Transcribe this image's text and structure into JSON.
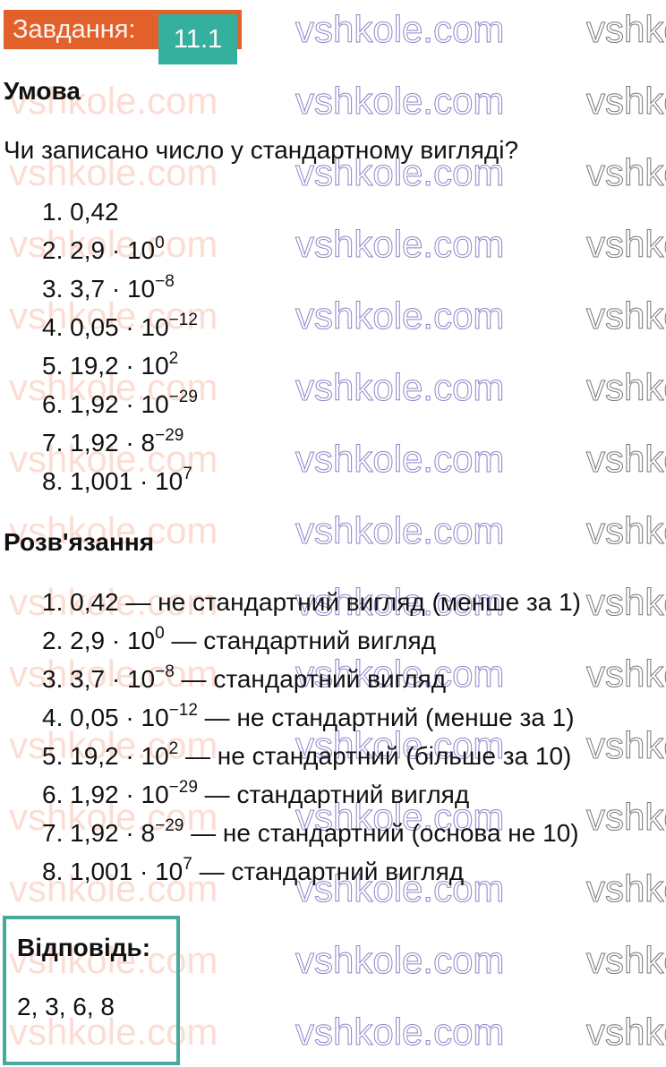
{
  "watermark": "vshkole.com",
  "badge": {
    "label": "Завдання:",
    "number": "11.1"
  },
  "condition": {
    "heading": "Умова",
    "question": "Чи записано число у стандартному вигляді?",
    "items": [
      {
        "base": "1. 0,42",
        "exp": "",
        "rest": ""
      },
      {
        "base": "2. 2,9 · 10",
        "exp": "0",
        "rest": ""
      },
      {
        "base": "3. 3,7 · 10",
        "exp": "−8",
        "rest": ""
      },
      {
        "base": "4. 0,05 · 10",
        "exp": "−12",
        "rest": ""
      },
      {
        "base": "5. 19,2 · 10",
        "exp": "2",
        "rest": ""
      },
      {
        "base": "6. 1,92 · 10",
        "exp": "−29",
        "rest": ""
      },
      {
        "base": "7. 1,92 · 8",
        "exp": "−29",
        "rest": ""
      },
      {
        "base": "8. 1,001 · 10",
        "exp": "7",
        "rest": ""
      }
    ]
  },
  "solution": {
    "heading": "Розв'язання",
    "items": [
      {
        "base": "1. 0,42 — не стандартний вигляд (менше за 1)",
        "exp": "",
        "rest": ""
      },
      {
        "base": "2. 2,9 · 10",
        "exp": "0",
        "rest": " — стандартний вигляд"
      },
      {
        "base": "3. 3,7 · 10",
        "exp": "−8",
        "rest": " — стандартний вигляд"
      },
      {
        "base": "4. 0,05 · 10",
        "exp": "−12",
        "rest": " — не стандартний (менше за 1)"
      },
      {
        "base": "5. 19,2 · 10",
        "exp": "2",
        "rest": " — не стандартний (більше за 10)"
      },
      {
        "base": "6. 1,92 · 10",
        "exp": "−29",
        "rest": " — стандартний вигляд"
      },
      {
        "base": "7. 1,92 · 8",
        "exp": "−29",
        "rest": " — не стандартний (основа не 10)"
      },
      {
        "base": "8. 1,001 · 10",
        "exp": "7",
        "rest": " — стандартний вигляд"
      }
    ]
  },
  "answer": {
    "title": "Відповідь:",
    "value": "2, 3, 6, 8"
  },
  "colors": {
    "badge_orange": "#e2612a",
    "badge_teal": "#35b09e",
    "answer_border": "#45ab9c"
  }
}
